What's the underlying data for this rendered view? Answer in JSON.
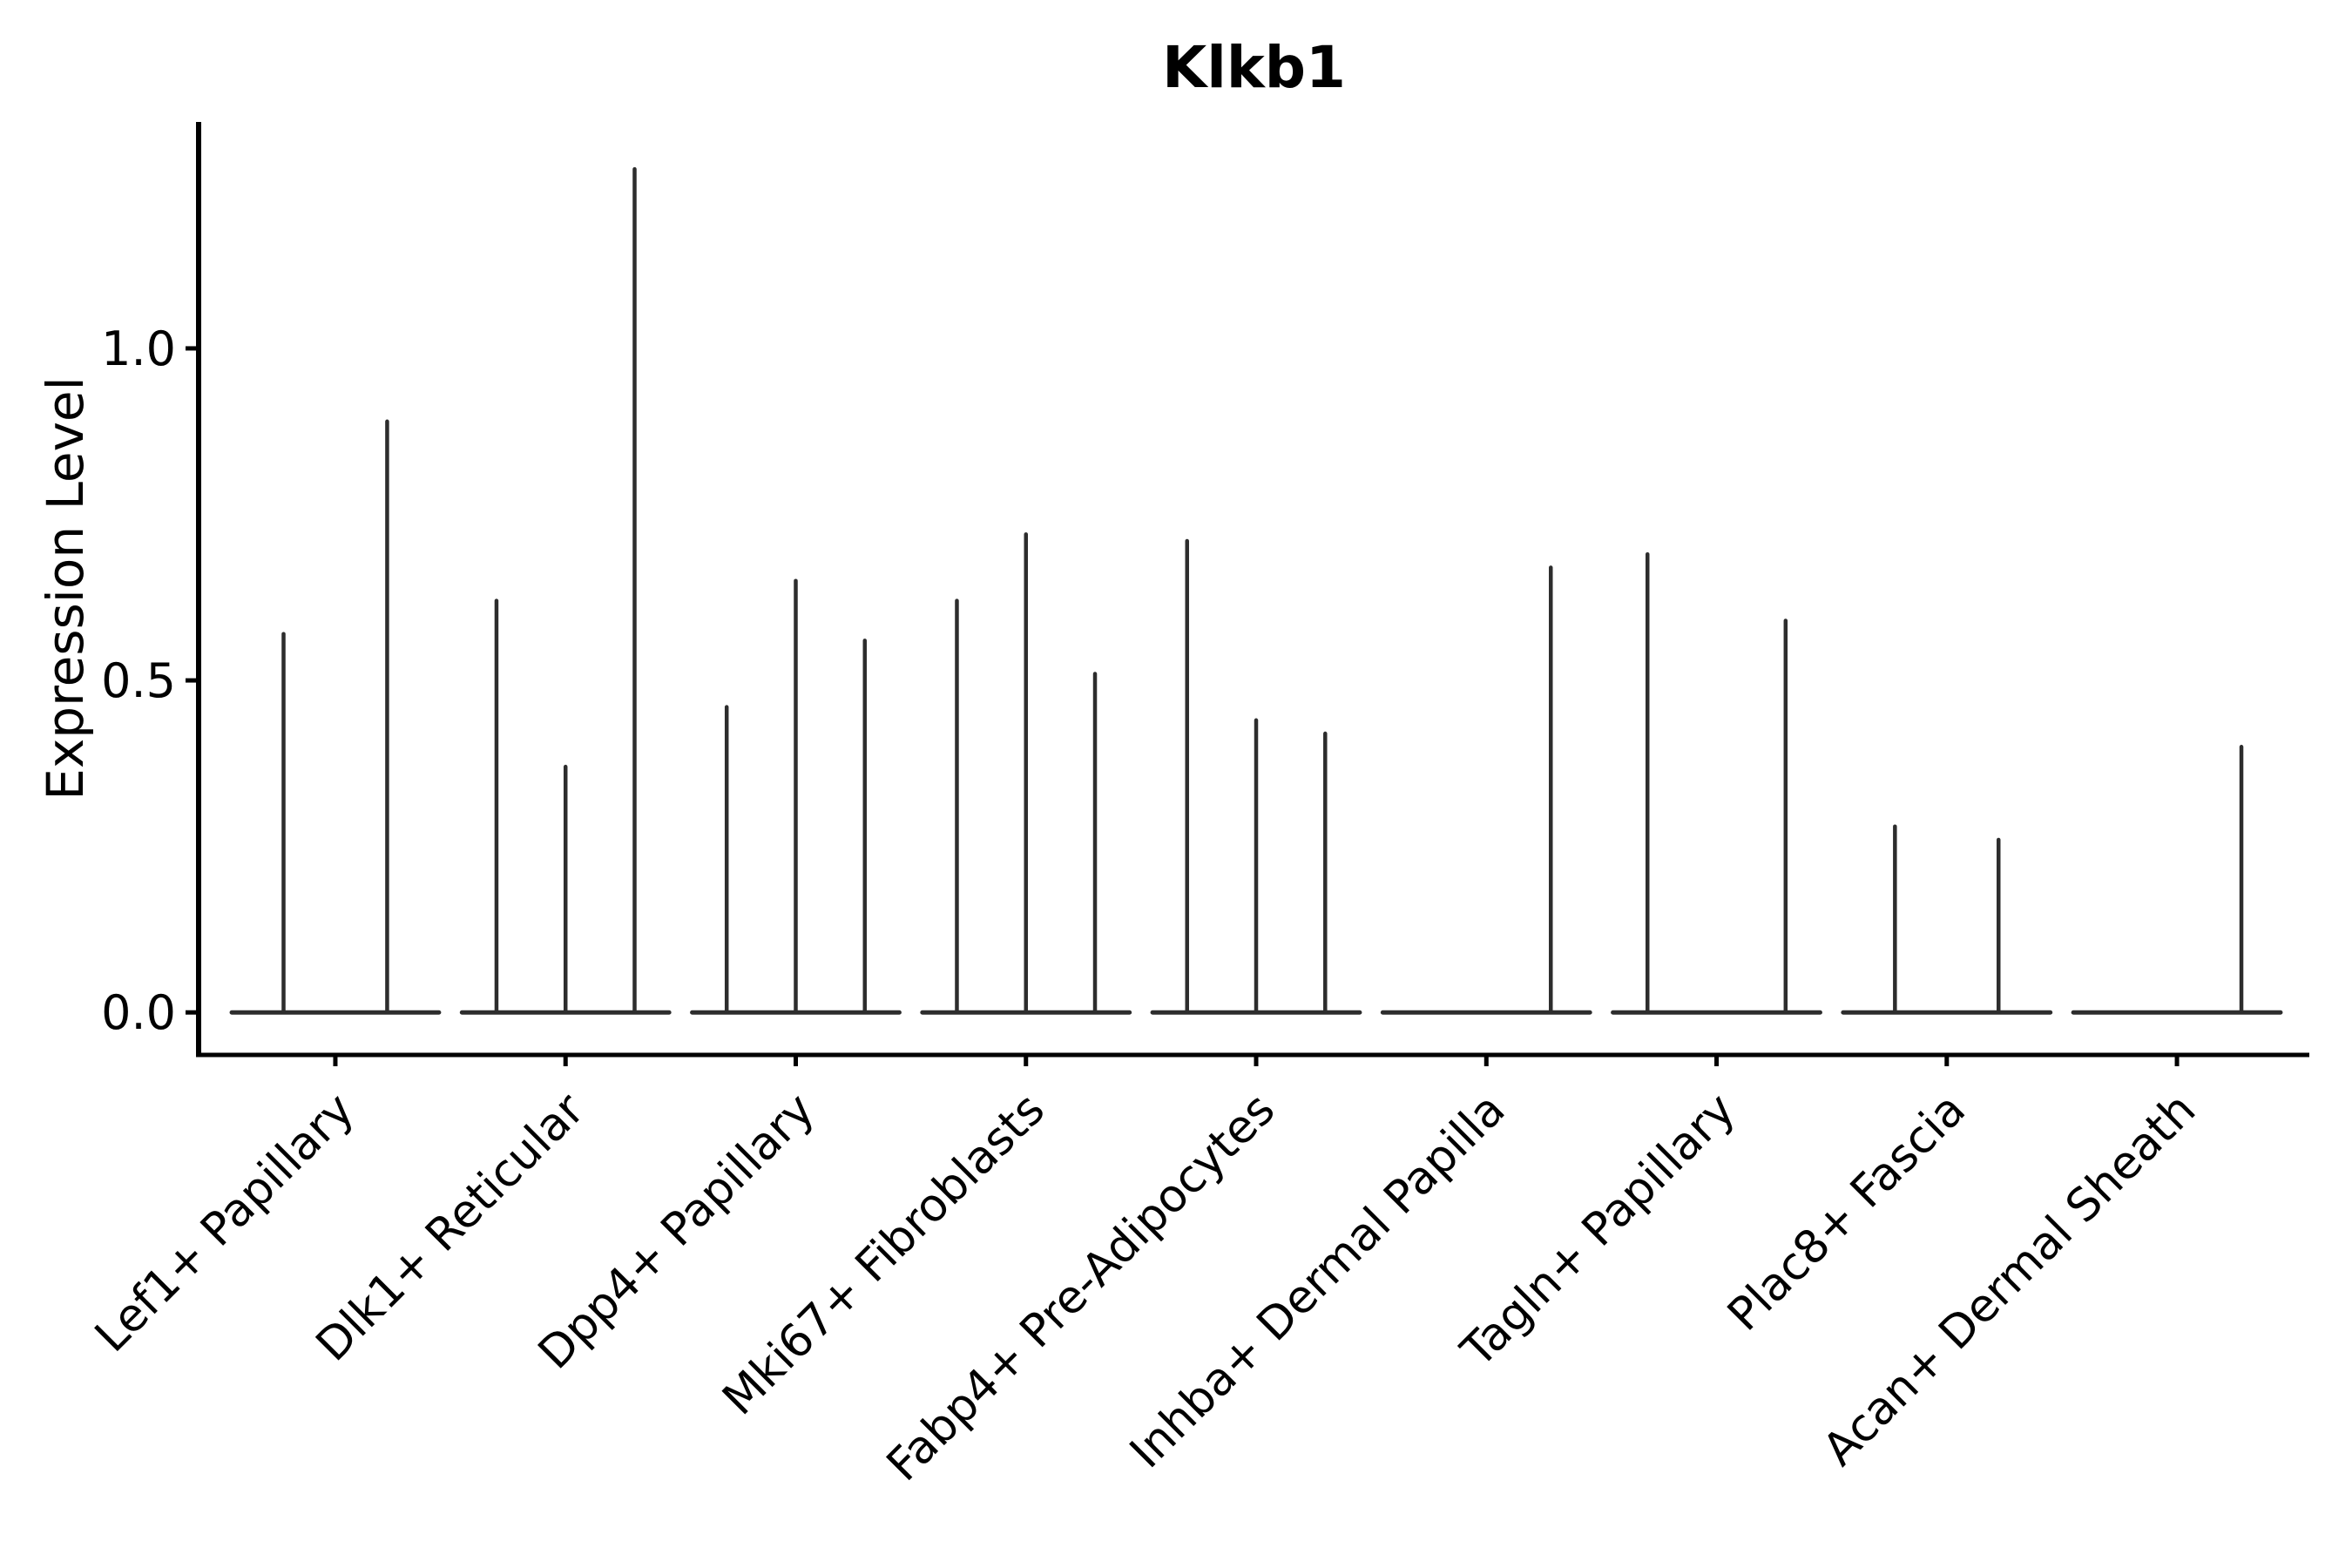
{
  "chart_data": {
    "type": "violin",
    "title": "Klkb1",
    "xlabel": "",
    "ylabel": "Expression Level",
    "yticks": [
      0.0,
      0.5,
      1.0
    ],
    "ytick_labels": [
      "0.0",
      "0.5",
      "1.0"
    ],
    "ylim": [
      -0.064,
      1.341
    ],
    "grid": false,
    "legend": null,
    "x_tick_rotation": 45,
    "baseline_halfwidth": 0.45,
    "categories": [
      "Lef1+ Papillary",
      "Dlk1+ Reticular",
      "Dpp4+ Papillary",
      "Mki67+ Fibroblasts",
      "Fabp4+ Pre-Adipocytes",
      "Inhba+ Dermal Papilla",
      "Tagln+ Papillary",
      "Plac8+ Fascia",
      "Acan+ Dermal Sheath"
    ],
    "series": [
      {
        "category": "Lef1+ Papillary",
        "violins": [
          {
            "offset": -0.225,
            "peak": 0.57
          },
          {
            "offset": 0.225,
            "peak": 0.89
          }
        ]
      },
      {
        "category": "Dlk1+ Reticular",
        "violins": [
          {
            "offset": -0.3,
            "peak": 0.62
          },
          {
            "offset": 0.0,
            "peak": 0.37
          },
          {
            "offset": 0.3,
            "peak": 1.27
          }
        ]
      },
      {
        "category": "Dpp4+ Papillary",
        "violins": [
          {
            "offset": -0.3,
            "peak": 0.46
          },
          {
            "offset": 0.0,
            "peak": 0.65
          },
          {
            "offset": 0.3,
            "peak": 0.56
          }
        ]
      },
      {
        "category": "Mki67+ Fibroblasts",
        "violins": [
          {
            "offset": -0.3,
            "peak": 0.62
          },
          {
            "offset": 0.0,
            "peak": 0.72
          },
          {
            "offset": 0.3,
            "peak": 0.51
          }
        ]
      },
      {
        "category": "Fabp4+ Pre-Adipocytes",
        "violins": [
          {
            "offset": -0.3,
            "peak": 0.71
          },
          {
            "offset": 0.0,
            "peak": 0.44
          },
          {
            "offset": 0.3,
            "peak": 0.42
          }
        ]
      },
      {
        "category": "Inhba+ Dermal Papilla",
        "violins": [
          {
            "offset": 0.28,
            "peak": 0.67
          }
        ]
      },
      {
        "category": "Tagln+ Papillary",
        "violins": [
          {
            "offset": -0.3,
            "peak": 0.69
          },
          {
            "offset": 0.3,
            "peak": 0.59
          }
        ]
      },
      {
        "category": "Plac8+ Fascia",
        "violins": [
          {
            "offset": -0.225,
            "peak": 0.28
          },
          {
            "offset": 0.225,
            "peak": 0.26
          }
        ]
      },
      {
        "category": "Acan+ Dermal Sheath",
        "violins": [
          {
            "offset": 0.28,
            "peak": 0.4
          }
        ]
      }
    ],
    "colors": {
      "violin": "#2d2d2d",
      "axis": "#000000",
      "text": "#000000",
      "background": "#ffffff"
    }
  }
}
